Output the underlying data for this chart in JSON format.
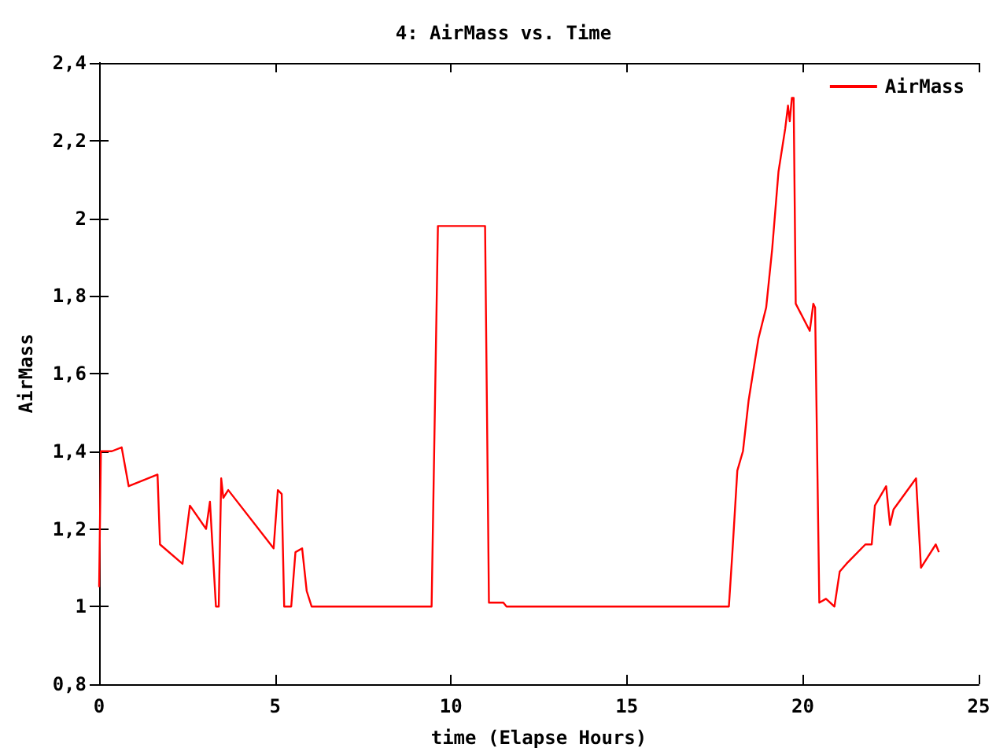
{
  "chart_data": {
    "type": "line",
    "title": "4: AirMass vs. Time",
    "xlabel": "time (Elapse Hours)",
    "ylabel": "AirMass",
    "xlim": [
      0,
      25
    ],
    "xticks": [
      0,
      5,
      10,
      15,
      20,
      25
    ],
    "ylim": [
      0.8,
      2.4
    ],
    "yticks": [
      {
        "value": 0.8,
        "label": "0,8"
      },
      1,
      {
        "value": 1.2,
        "label": "1,2"
      },
      {
        "value": 1.4,
        "label": "1,4"
      },
      {
        "value": 1.6,
        "label": "1,6"
      },
      {
        "value": 1.8,
        "label": "1,8"
      },
      2,
      {
        "value": 2.2,
        "label": "2,2"
      },
      {
        "value": 2.4,
        "label": "2,4"
      }
    ],
    "grid": false,
    "legend": "top right",
    "marker": "none",
    "line_style": "solid",
    "series": [
      {
        "name": "AirMass",
        "color": "#ff0000",
        "x": [
          0,
          0.05,
          0.36,
          0.64,
          0.84,
          1.66,
          1.73,
          2.37,
          2.58,
          3.04,
          3.15,
          3.32,
          3.4,
          3.47,
          3.53,
          3.67,
          4.96,
          5.08,
          5.19,
          5.26,
          5.46,
          5.58,
          5.77,
          5.9,
          6.04,
          9.45,
          9.63,
          10.97,
          11.08,
          11.49,
          11.58,
          17.9,
          18.0,
          18.14,
          18.3,
          18.46,
          18.74,
          18.96,
          19.13,
          19.31,
          19.5,
          19.58,
          19.63,
          19.69,
          19.74,
          19.8,
          20.2,
          20.3,
          20.35,
          20.47,
          20.66,
          20.9,
          21.05,
          21.24,
          21.78,
          21.96,
          22.05,
          22.37,
          22.48,
          22.58,
          23.22,
          23.36,
          23.78,
          23.87
        ],
        "values": [
          1.05,
          1.4,
          1.4,
          1.41,
          1.31,
          1.34,
          1.16,
          1.11,
          1.26,
          1.2,
          1.27,
          1.0,
          1.0,
          1.33,
          1.28,
          1.3,
          1.15,
          1.3,
          1.29,
          1.0,
          1.0,
          1.14,
          1.15,
          1.04,
          1.0,
          1.0,
          1.98,
          1.98,
          1.01,
          1.01,
          1.0,
          1.0,
          1.14,
          1.35,
          1.4,
          1.53,
          1.69,
          1.77,
          1.92,
          2.12,
          2.23,
          2.29,
          2.25,
          2.31,
          2.31,
          1.78,
          1.71,
          1.78,
          1.77,
          1.01,
          1.02,
          1.0,
          1.09,
          1.11,
          1.16,
          1.16,
          1.26,
          1.31,
          1.21,
          1.25,
          1.33,
          1.1,
          1.16,
          1.14
        ]
      }
    ]
  }
}
